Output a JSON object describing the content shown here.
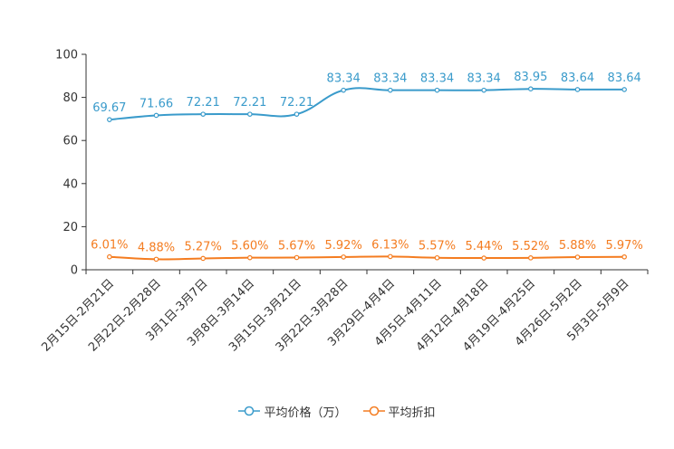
{
  "chart_data": {
    "type": "line",
    "title": "",
    "xlabel": "",
    "ylabel": "",
    "ylim": [
      0,
      100
    ],
    "yticks": [
      "0",
      "20",
      "40",
      "60",
      "80",
      "100"
    ],
    "categories": [
      "2月15日-2月21日",
      "2月22日-2月28日",
      "3月1日-3月7日",
      "3月8日-3月14日",
      "3月15日-3月21日",
      "3月22日-3月28日",
      "3月29日-4月4日",
      "4月5日-4月11日",
      "4月12日-4月18日",
      "4月19日-4月25日",
      "4月26日-5月2日",
      "5月3日-5月9日"
    ],
    "series": [
      {
        "name": "平均价格（万）",
        "color": "#3a9bcb",
        "values": [
          69.67,
          71.66,
          72.21,
          72.21,
          72.21,
          83.34,
          83.34,
          83.34,
          83.34,
          83.95,
          83.64,
          83.64
        ],
        "labels": [
          "69.67",
          "71.66",
          "72.21",
          "72.21",
          "72.21",
          "83.34",
          "83.34",
          "83.34",
          "83.34",
          "83.95",
          "83.64",
          "83.64"
        ]
      },
      {
        "name": "平均折扣",
        "color": "#f47c20",
        "values": [
          6.01,
          4.88,
          5.27,
          5.6,
          5.67,
          5.92,
          6.13,
          5.57,
          5.44,
          5.52,
          5.88,
          5.97
        ],
        "labels": [
          "6.01%",
          "4.88%",
          "5.27%",
          "5.60%",
          "5.67%",
          "5.92%",
          "6.13%",
          "5.57%",
          "5.44%",
          "5.52%",
          "5.88%",
          "5.97%"
        ]
      }
    ],
    "legend_position": "bottom-center"
  }
}
